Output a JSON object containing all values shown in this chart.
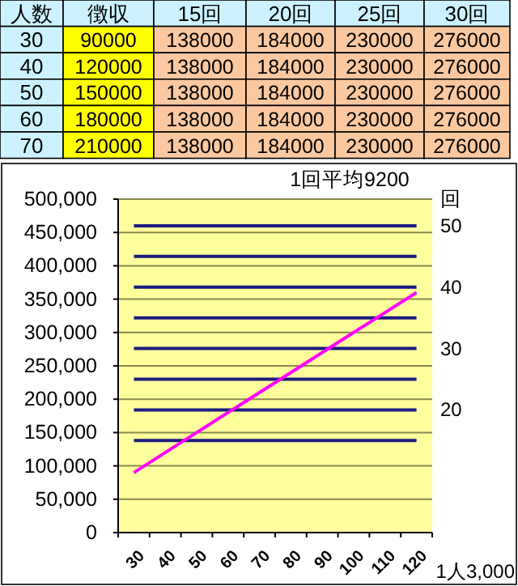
{
  "chart_data": [
    {
      "type": "heatmap",
      "ylabel": "人数",
      "categories": [
        "徴収",
        "15回",
        "20回",
        "25回",
        "30回"
      ],
      "y_categories": [
        "30",
        "40",
        "50",
        "60",
        "70"
      ],
      "cells": [
        [
          90000,
          138000,
          184000,
          230000,
          276000
        ],
        [
          120000,
          138000,
          184000,
          230000,
          276000
        ],
        [
          150000,
          138000,
          184000,
          230000,
          276000
        ],
        [
          180000,
          138000,
          184000,
          230000,
          276000
        ],
        [
          210000,
          138000,
          184000,
          230000,
          276000
        ]
      ],
      "colors": [
        "#ffff00",
        "#fcc8a0",
        "#fcc8a0",
        "#fcc8a0",
        "#fcc8a0"
      ],
      "data_labels": true
    },
    {
      "type": "line",
      "title": "1回平均9200",
      "xlabel": "1人3,000",
      "y2label": "回",
      "categories": [
        "30",
        "40",
        "50",
        "60",
        "70",
        "80",
        "90",
        "100",
        "110",
        "120"
      ],
      "series": [
        {
          "color": "#ff00ff",
          "values": [
            90000,
            120000,
            150000,
            180000,
            210000,
            240000,
            270000,
            300000,
            330000,
            360000
          ]
        },
        {
          "color": "#1c1c80",
          "values": [
            138000,
            138000,
            138000,
            138000,
            138000,
            138000,
            138000,
            138000,
            138000,
            138000
          ]
        },
        {
          "color": "#1c1c80",
          "values": [
            184000,
            184000,
            184000,
            184000,
            184000,
            184000,
            184000,
            184000,
            184000,
            184000
          ]
        },
        {
          "color": "#1c1c80",
          "values": [
            230000,
            230000,
            230000,
            230000,
            230000,
            230000,
            230000,
            230000,
            230000,
            230000
          ]
        },
        {
          "color": "#1c1c80",
          "values": [
            276000,
            276000,
            276000,
            276000,
            276000,
            276000,
            276000,
            276000,
            276000,
            276000
          ]
        },
        {
          "color": "#1c1c80",
          "values": [
            322000,
            322000,
            322000,
            322000,
            322000,
            322000,
            322000,
            322000,
            322000,
            322000
          ]
        },
        {
          "color": "#1c1c80",
          "values": [
            368000,
            368000,
            368000,
            368000,
            368000,
            368000,
            368000,
            368000,
            368000,
            368000
          ]
        },
        {
          "color": "#1c1c80",
          "values": [
            414000,
            414000,
            414000,
            414000,
            414000,
            414000,
            414000,
            414000,
            414000,
            414000
          ]
        },
        {
          "color": "#1c1c80",
          "values": [
            460000,
            460000,
            460000,
            460000,
            460000,
            460000,
            460000,
            460000,
            460000,
            460000
          ]
        }
      ],
      "ylim": [
        0,
        500000
      ],
      "yticks": [
        {
          "value": 0,
          "label": "0"
        },
        {
          "value": 50000,
          "label": "50,000"
        },
        {
          "value": 100000,
          "label": "100,000"
        },
        {
          "value": 150000,
          "label": "150,000"
        },
        {
          "value": 200000,
          "label": "200,000"
        },
        {
          "value": 250000,
          "label": "250,000"
        },
        {
          "value": 300000,
          "label": "300,000"
        },
        {
          "value": 350000,
          "label": "350,000"
        },
        {
          "value": 400000,
          "label": "400,000"
        },
        {
          "value": 450000,
          "label": "450,000"
        },
        {
          "value": 500000,
          "label": "500,000"
        }
      ],
      "y2lim": [
        0,
        54.35
      ],
      "y2ticks": [
        20,
        30,
        40,
        50
      ],
      "grid": "y",
      "marker": "none",
      "line_style": "solid"
    }
  ]
}
